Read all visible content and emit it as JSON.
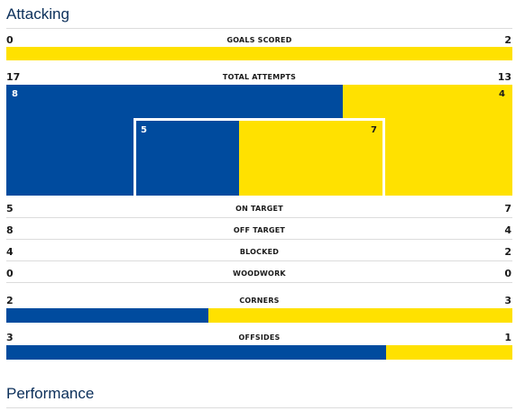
{
  "sections": {
    "attacking": "Attacking",
    "performance": "Performance"
  },
  "colors": {
    "home": "#004b9e",
    "away": "#ffe100"
  },
  "stats": {
    "goals": {
      "label": "GOALS SCORED",
      "home": "0",
      "away": "2"
    },
    "attempts": {
      "label": "TOTAL ATTEMPTS",
      "home": "17",
      "away": "13"
    },
    "zone_outside": {
      "home": "8",
      "away": "4"
    },
    "zone_inside": {
      "home": "5",
      "away": "7"
    },
    "on_target": {
      "label": "ON TARGET",
      "home": "5",
      "away": "7"
    },
    "off_target": {
      "label": "OFF TARGET",
      "home": "8",
      "away": "4"
    },
    "blocked": {
      "label": "BLOCKED",
      "home": "4",
      "away": "2"
    },
    "woodwork": {
      "label": "WOODWORK",
      "home": "0",
      "away": "0"
    },
    "corners": {
      "label": "CORNERS",
      "home": "2",
      "away": "3"
    },
    "offsides": {
      "label": "OFFSIDES",
      "home": "3",
      "away": "1"
    }
  }
}
